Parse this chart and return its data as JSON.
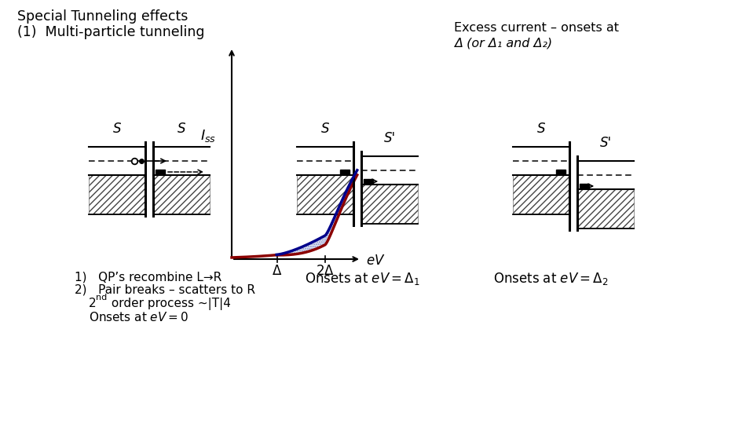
{
  "title": "Special Tunneling effects",
  "subtitle": "(1)  Multi-particle tunneling",
  "bg_color": "#ffffff",
  "excess_line1": "Excess current – onsets at",
  "excess_line2": "Δ (or Δ₁ and Δ₂)",
  "list_item1": "1)   QP’s recombine L→R",
  "list_item2": "2)   Pair breaks – scatters to R",
  "list_item3_num": "2",
  "list_item3_sup": "nd",
  "list_item3_rest": " order process ~|T|4",
  "list_item4": "Onsets at eV = 0",
  "onsets_middle": "Onsets at eV = Δ₁",
  "onsets_right": "Onsets at eV = Δ₂",
  "iv_ylabel": "$I_{ss}$",
  "iv_xlabel": "$eV$",
  "iv_tick1": "Δ",
  "iv_tick2": "2Δ",
  "junc1_left": "S",
  "junc1_right": "S",
  "junc2_left": "S",
  "junc2_right": "S'",
  "junc3_left": "S",
  "junc3_right": "S'"
}
